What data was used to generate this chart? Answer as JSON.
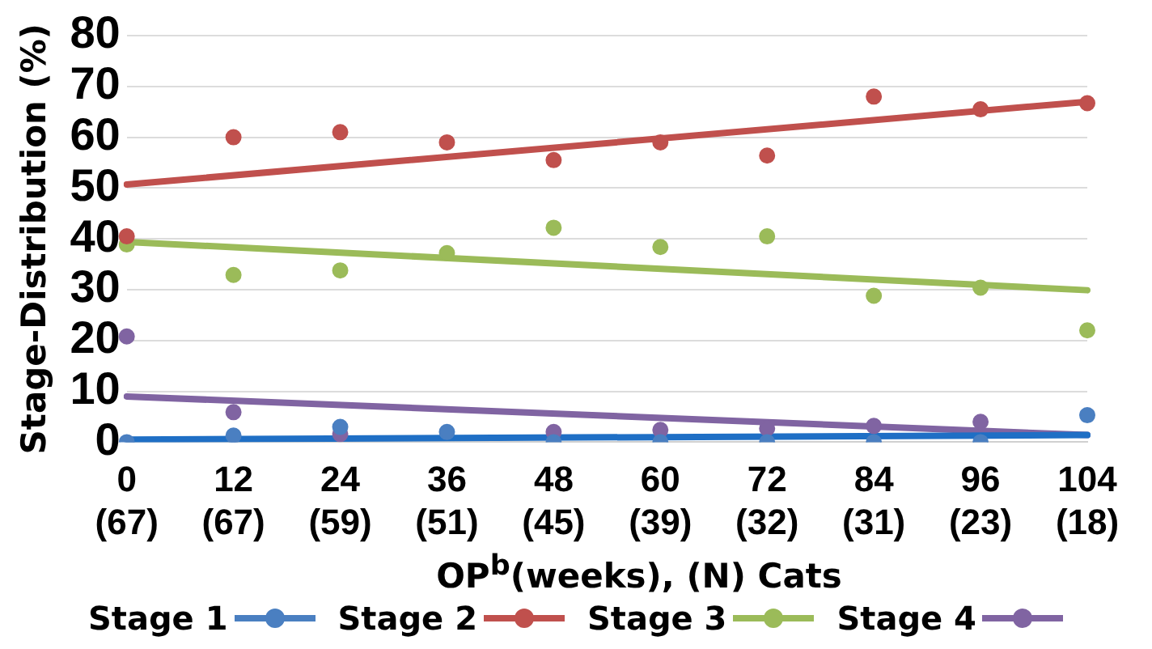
{
  "chart_data": {
    "type": "scatter",
    "ylabel": "Stage-Distribution (%)",
    "xlabel": "OP$^{b}$(weeks), (N) Cats",
    "categories": [
      "0\n(67)",
      "12\n(67)",
      "24\n(59)",
      "36\n(51)",
      "48\n(45)",
      "60\n(39)",
      "72\n(32)",
      "84\n(31)",
      "96\n(23)",
      "104\n(18)"
    ],
    "ylim": [
      0,
      80
    ],
    "yticks": [
      0,
      10,
      20,
      30,
      40,
      50,
      60,
      70,
      80
    ],
    "grid": "y",
    "legend": "bottom",
    "marker": "circle",
    "series": [
      {
        "name": "Stage 1",
        "color": "#4a7fc1",
        "values": [
          0,
          1.3,
          3,
          2,
          0,
          0,
          0,
          0,
          0,
          5.3
        ]
      },
      {
        "name": "Stage 2",
        "color": "#c0504d",
        "values": [
          40.5,
          60,
          61,
          59,
          55.5,
          59,
          56.4,
          68,
          65.5,
          66.7
        ]
      },
      {
        "name": "Stage 3",
        "color": "#9bbb59",
        "values": [
          38.9,
          32.9,
          33.8,
          37.2,
          42.2,
          38.4,
          40.5,
          28.8,
          30.4,
          22
        ]
      },
      {
        "name": "Stage 4",
        "color": "#8064a2",
        "values": [
          20.8,
          5.9,
          1.6,
          null,
          2,
          2.4,
          2.7,
          3.2,
          4,
          null
        ]
      },
      {
        "type": "line",
        "marker": "none",
        "color": "#1f6fc5",
        "values": [
          0.5,
          null,
          null,
          null,
          null,
          null,
          null,
          null,
          null,
          1.4
        ]
      },
      {
        "type": "line",
        "marker": "none",
        "color": "#c0504d",
        "values": [
          50.7,
          null,
          null,
          null,
          null,
          null,
          null,
          null,
          null,
          67
        ]
      },
      {
        "type": "line",
        "marker": "none",
        "color": "#9bbb59",
        "values": [
          39.4,
          null,
          null,
          null,
          null,
          null,
          null,
          null,
          null,
          29.9
        ]
      },
      {
        "type": "line",
        "marker": "none",
        "color": "#8064a2",
        "values": [
          9,
          null,
          null,
          null,
          null,
          null,
          null,
          null,
          null,
          1.4
        ]
      }
    ]
  }
}
